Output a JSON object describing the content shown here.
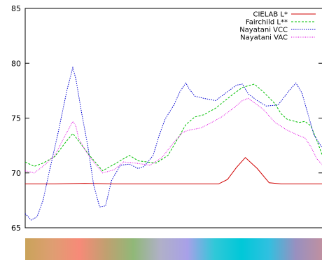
{
  "chart_data": {
    "type": "line",
    "title": "",
    "xlabel": "",
    "ylabel": "",
    "ylim": [
      65,
      85
    ],
    "yticks": [
      65,
      70,
      75,
      80,
      85
    ],
    "xlim": [
      0,
      100
    ],
    "grid": false,
    "legend_position": "top-right",
    "series": [
      {
        "name": "CIELAB L*",
        "color": "#d00000",
        "dash": "",
        "x": [
          0,
          10,
          20,
          30,
          40,
          50,
          60,
          65,
          68,
          71,
          74,
          78,
          82,
          86,
          90,
          94,
          100
        ],
        "y": [
          69.0,
          69.0,
          69.05,
          69.0,
          69.0,
          69.0,
          69.0,
          69.0,
          69.4,
          70.5,
          71.4,
          70.4,
          69.1,
          69.0,
          69.0,
          69.0,
          69.0
        ]
      },
      {
        "name": "Fairchild L**",
        "color": "#00c000",
        "dash": "3,2",
        "x": [
          0,
          3,
          6,
          10,
          13,
          16,
          18,
          21,
          26,
          30,
          35,
          38,
          44,
          48,
          51,
          54,
          57,
          60,
          64,
          69,
          73,
          77,
          80,
          84,
          86,
          88,
          92,
          94,
          96,
          98,
          100
        ],
        "y": [
          71.0,
          70.6,
          70.9,
          71.5,
          72.6,
          73.6,
          72.9,
          71.8,
          70.2,
          70.8,
          71.6,
          71.1,
          70.9,
          71.6,
          73.0,
          74.4,
          75.1,
          75.3,
          75.9,
          77.0,
          77.8,
          78.1,
          77.4,
          76.3,
          75.4,
          74.9,
          74.6,
          74.7,
          74.3,
          73.0,
          71.5
        ]
      },
      {
        "name": "Nayatani VCC",
        "color": "#0000d0",
        "dash": "1.5,1.5",
        "x": [
          0,
          2,
          4,
          6,
          8,
          11,
          14,
          16,
          17,
          19,
          21,
          23,
          25,
          27,
          29,
          32,
          35,
          38,
          40,
          43,
          45,
          47,
          50,
          52,
          54,
          55,
          57,
          60,
          64,
          68,
          71,
          73,
          75,
          78,
          81,
          85,
          87,
          89,
          91,
          93,
          95,
          97,
          100
        ],
        "y": [
          66.3,
          65.7,
          66.0,
          67.5,
          70.0,
          73.6,
          77.5,
          79.6,
          78.6,
          75.4,
          72.5,
          68.9,
          66.9,
          67.0,
          69.3,
          70.7,
          70.8,
          70.4,
          70.6,
          71.6,
          73.4,
          74.9,
          76.2,
          77.4,
          78.2,
          77.7,
          77.0,
          76.8,
          76.6,
          77.4,
          78.0,
          78.1,
          77.2,
          76.6,
          76.1,
          76.2,
          76.9,
          77.6,
          78.2,
          77.3,
          75.4,
          73.5,
          72.2
        ]
      },
      {
        "name": "Nayatani VAC",
        "color": "#e000e0",
        "dash": "1,1.5",
        "x": [
          0,
          3,
          6,
          10,
          13,
          16,
          17,
          18,
          21,
          26,
          30,
          33,
          37,
          42,
          46,
          50,
          53,
          55,
          57,
          59,
          62,
          66,
          70,
          73,
          75,
          77,
          80,
          84,
          88,
          92,
          94,
          96,
          98,
          100
        ],
        "y": [
          70.2,
          70.0,
          70.6,
          71.6,
          73.2,
          74.7,
          74.3,
          73.1,
          71.7,
          70.0,
          70.3,
          71.0,
          70.9,
          70.7,
          71.4,
          72.8,
          73.7,
          73.9,
          74.0,
          74.1,
          74.5,
          75.1,
          75.9,
          76.6,
          76.8,
          76.4,
          75.8,
          74.6,
          73.9,
          73.4,
          73.2,
          72.4,
          71.3,
          70.7
        ]
      }
    ],
    "hue_strip_colors": [
      "#c9a35a",
      "#de9e72",
      "#f78a78",
      "#c0a070",
      "#90b878",
      "#b0b0c8",
      "#a8a0e8",
      "#30c8d8",
      "#00c8d8",
      "#30c0e0",
      "#9890c0",
      "#c090a0"
    ]
  }
}
